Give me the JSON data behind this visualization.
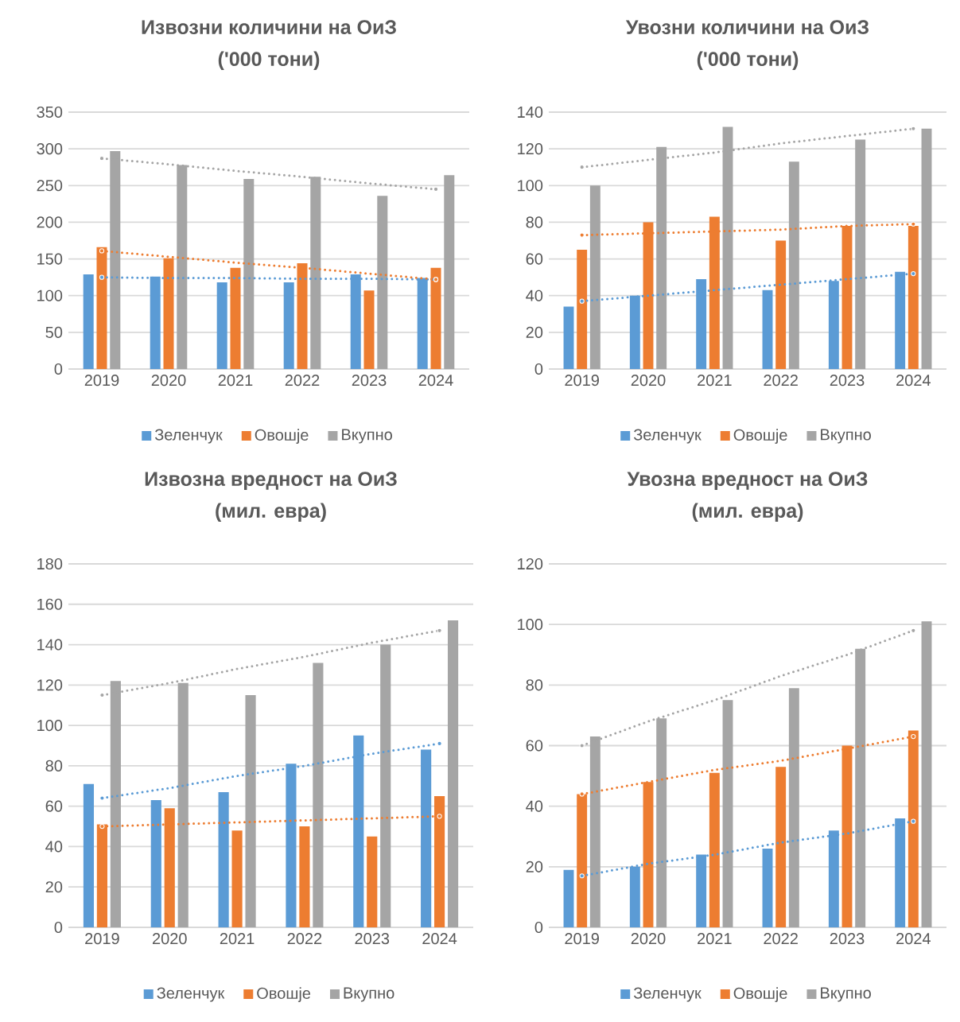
{
  "chart_data": [
    {
      "type": "bar",
      "title": "Извозни количини на ОиЗ",
      "subtitle": "('000 тони)",
      "categories": [
        "2019",
        "2020",
        "2021",
        "2022",
        "2023",
        "2024"
      ],
      "ylim": [
        0,
        350
      ],
      "yticks": [
        0,
        50,
        100,
        150,
        200,
        250,
        300,
        350
      ],
      "grid": "y",
      "legend": "bottom",
      "series": [
        {
          "name": "Зеленчук",
          "color": "#5b9bd5",
          "values": [
            129,
            126,
            118,
            118,
            129,
            124
          ]
        },
        {
          "name": "Овошје",
          "color": "#ed7d31",
          "values": [
            166,
            151,
            138,
            144,
            107,
            138
          ]
        },
        {
          "name": "Вкупно",
          "color": "#a5a5a5",
          "values": [
            297,
            278,
            259,
            262,
            236,
            264
          ]
        },
        {
          "type": "line",
          "values": [
            125,
            124,
            124,
            123,
            123,
            122
          ],
          "color": "#5b9bd5",
          "line_style": "dotted"
        },
        {
          "type": "line",
          "values": [
            161,
            153,
            145,
            138,
            130,
            122
          ],
          "color": "#ed7d31",
          "line_style": "dotted"
        },
        {
          "type": "line",
          "values": [
            287,
            279,
            270,
            262,
            253,
            245
          ],
          "color": "#a5a5a5",
          "line_style": "dotted"
        }
      ]
    },
    {
      "type": "bar",
      "title": "Увозни количини на ОиЗ",
      "subtitle": "('000 тони)",
      "categories": [
        "2019",
        "2020",
        "2021",
        "2022",
        "2023",
        "2024"
      ],
      "ylim": [
        0,
        140
      ],
      "yticks": [
        0,
        20,
        40,
        60,
        80,
        100,
        120,
        140
      ],
      "grid": "y",
      "legend": "bottom",
      "series": [
        {
          "name": "Зеленчук",
          "color": "#5b9bd5",
          "values": [
            34,
            40,
            49,
            43,
            48,
            53
          ]
        },
        {
          "name": "Овошје",
          "color": "#ed7d31",
          "values": [
            65,
            80,
            83,
            70,
            78,
            78
          ]
        },
        {
          "name": "Вкупно",
          "color": "#a5a5a5",
          "values": [
            100,
            121,
            132,
            113,
            125,
            131
          ]
        },
        {
          "type": "line",
          "values": [
            37,
            40,
            43,
            46,
            49,
            52
          ],
          "color": "#5b9bd5",
          "line_style": "dotted"
        },
        {
          "type": "line",
          "values": [
            73,
            74,
            75,
            76,
            78,
            79
          ],
          "color": "#ed7d31",
          "line_style": "dotted"
        },
        {
          "type": "line",
          "values": [
            110,
            114,
            118,
            123,
            127,
            131
          ],
          "color": "#a5a5a5",
          "line_style": "dotted"
        }
      ]
    },
    {
      "type": "bar",
      "title": "Извозна вредност на ОиЗ",
      "subtitle": "(мил. евра)",
      "categories": [
        "2019",
        "2020",
        "2021",
        "2022",
        "2023",
        "2024"
      ],
      "ylim": [
        0,
        180
      ],
      "yticks": [
        0,
        20,
        40,
        60,
        80,
        100,
        120,
        140,
        160,
        180
      ],
      "grid": "y",
      "legend": "bottom",
      "series": [
        {
          "name": "Зеленчук",
          "color": "#5b9bd5",
          "values": [
            71,
            63,
            67,
            81,
            95,
            88
          ]
        },
        {
          "name": "Овошје",
          "color": "#ed7d31",
          "values": [
            51,
            59,
            48,
            50,
            45,
            65
          ]
        },
        {
          "name": "Вкупно",
          "color": "#a5a5a5",
          "values": [
            122,
            121,
            115,
            131,
            140,
            152
          ]
        },
        {
          "type": "line",
          "values": [
            64,
            69,
            75,
            80,
            86,
            91
          ],
          "color": "#5b9bd5",
          "line_style": "dotted"
        },
        {
          "type": "line",
          "values": [
            50,
            51,
            52,
            53,
            54,
            55
          ],
          "color": "#ed7d31",
          "line_style": "dotted"
        },
        {
          "type": "line",
          "values": [
            115,
            121,
            128,
            134,
            141,
            147
          ],
          "color": "#a5a5a5",
          "line_style": "dotted"
        }
      ]
    },
    {
      "type": "bar",
      "title": "Увозна вредност на ОиЗ",
      "subtitle": "(мил. евра)",
      "categories": [
        "2019",
        "2020",
        "2021",
        "2022",
        "2023",
        "2024"
      ],
      "ylim": [
        0,
        120
      ],
      "yticks": [
        0,
        20,
        40,
        60,
        80,
        100,
        120
      ],
      "grid": "y",
      "legend": "bottom",
      "series": [
        {
          "name": "Зеленчук",
          "color": "#5b9bd5",
          "values": [
            19,
            20,
            24,
            26,
            32,
            36
          ]
        },
        {
          "name": "Овошје",
          "color": "#ed7d31",
          "values": [
            44,
            48,
            51,
            53,
            60,
            65
          ]
        },
        {
          "name": "Вкупно",
          "color": "#a5a5a5",
          "values": [
            63,
            69,
            75,
            79,
            92,
            101
          ]
        },
        {
          "type": "line",
          "values": [
            17,
            21,
            24,
            28,
            31,
            35
          ],
          "color": "#5b9bd5",
          "line_style": "dotted"
        },
        {
          "type": "line",
          "values": [
            44,
            48,
            52,
            55,
            59,
            63
          ],
          "color": "#ed7d31",
          "line_style": "dotted"
        },
        {
          "type": "line",
          "values": [
            60,
            68,
            75,
            83,
            90,
            98
          ],
          "color": "#a5a5a5",
          "line_style": "dotted"
        }
      ]
    }
  ]
}
